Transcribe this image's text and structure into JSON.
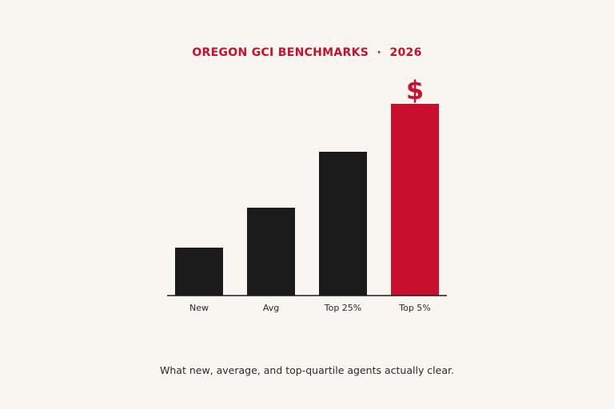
{
  "title": "OREGON GCI BENCHMARKS  ·  2026",
  "caption": "What new, average, and top-quartile agents actually clear.",
  "chart_data": {
    "type": "bar",
    "title": "OREGON GCI BENCHMARKS  ·  2026",
    "categories": [
      "New",
      "Avg",
      "Top 25%",
      "Top 5%"
    ],
    "values": [
      60,
      110,
      180,
      240
    ],
    "ylim": [
      0,
      240
    ],
    "grid": false,
    "highlight_index": 3,
    "highlight_marker": "$",
    "colors": {
      "bar": "#1b1b1b",
      "highlight": "#c8102e",
      "axis": "#1b1b1b",
      "tick_label": "#2a2a2a"
    }
  }
}
